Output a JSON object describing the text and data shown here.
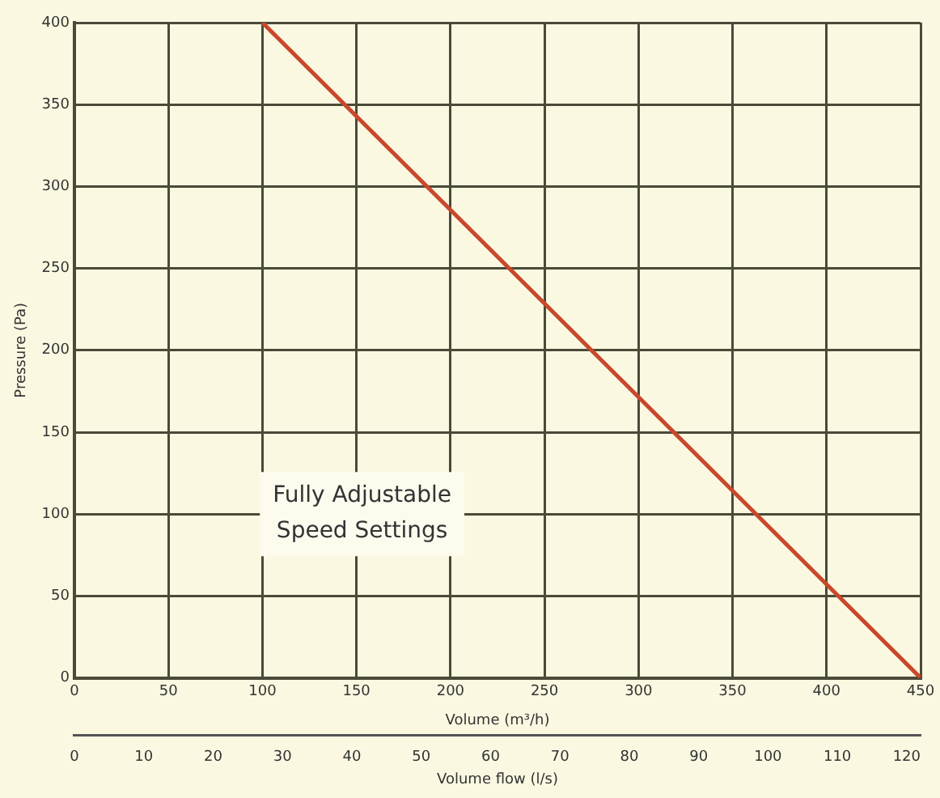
{
  "chart_data": {
    "type": "line",
    "xlabel": "Volume (m³/h)",
    "ylabel": "Pressure (Pa)",
    "x2label": "Volume flow (l/s)",
    "series": [
      {
        "color": "#c8482c",
        "x": [
          100,
          450
        ],
        "values": [
          400,
          0
        ]
      }
    ],
    "xlim": [
      0,
      450
    ],
    "xticks": [
      0,
      50,
      100,
      150,
      200,
      250,
      300,
      350,
      400,
      450
    ],
    "ylim": [
      0,
      400
    ],
    "yticks": [
      0,
      50,
      100,
      150,
      200,
      250,
      300,
      350,
      400
    ],
    "x2lim": [
      0,
      122
    ],
    "x2ticks": [
      0,
      10,
      20,
      30,
      40,
      50,
      60,
      70,
      80,
      90,
      100,
      110,
      120
    ],
    "annotations": [
      "Fully Adjustable\nSpeed Settings"
    ],
    "grid": true,
    "legend": false,
    "marker": "none",
    "line_style": "solid"
  }
}
